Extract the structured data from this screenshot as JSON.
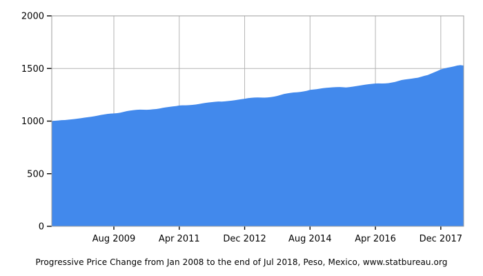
{
  "caption": "Progressive Price Change from Jan 2008 to the end of Jul 2018, Peso, Mexico, www.statbureau.org",
  "chart_data": {
    "type": "area",
    "title": "",
    "series_name": "Progressive price change index",
    "x_unit": "month",
    "start_month": "Jan 2008",
    "end_month": "Jul 2018",
    "interval": "monthly",
    "ylim": [
      0,
      2000
    ],
    "y_ticks": [
      0,
      500,
      1000,
      1500,
      2000
    ],
    "x_ticks": [
      {
        "label": "Aug 2009",
        "month_index": 19
      },
      {
        "label": "Apr 2011",
        "month_index": 39
      },
      {
        "label": "Dec 2012",
        "month_index": 59
      },
      {
        "label": "Aug 2014",
        "month_index": 79
      },
      {
        "label": "Apr 2016",
        "month_index": 99
      },
      {
        "label": "Dec 2017",
        "month_index": 119
      }
    ],
    "values": [
      1000,
      1003,
      1006,
      1009,
      1010,
      1013,
      1016,
      1020,
      1024,
      1028,
      1033,
      1037,
      1041,
      1046,
      1052,
      1058,
      1063,
      1068,
      1071,
      1073,
      1075,
      1080,
      1088,
      1095,
      1100,
      1104,
      1107,
      1109,
      1108,
      1107,
      1109,
      1112,
      1115,
      1120,
      1126,
      1131,
      1135,
      1139,
      1143,
      1148,
      1150,
      1150,
      1152,
      1154,
      1157,
      1162,
      1168,
      1173,
      1177,
      1180,
      1184,
      1186,
      1185,
      1188,
      1191,
      1194,
      1198,
      1203,
      1208,
      1212,
      1218,
      1221,
      1224,
      1225,
      1224,
      1223,
      1225,
      1228,
      1233,
      1239,
      1248,
      1257,
      1263,
      1268,
      1272,
      1274,
      1277,
      1282,
      1288,
      1297,
      1300,
      1303,
      1308,
      1313,
      1316,
      1319,
      1321,
      1323,
      1324,
      1322,
      1320,
      1323,
      1327,
      1332,
      1337,
      1342,
      1347,
      1351,
      1354,
      1357,
      1358,
      1357,
      1358,
      1361,
      1366,
      1372,
      1381,
      1390,
      1395,
      1399,
      1403,
      1408,
      1412,
      1421,
      1430,
      1438,
      1451,
      1464,
      1477,
      1491,
      1500,
      1507,
      1513,
      1520,
      1528,
      1532,
      1528
    ],
    "colors": {
      "area_fill": "#4289EC",
      "gridline": "#b4b4b4",
      "plot_border": "#9e9e9e",
      "tick_mark": "#000000",
      "label_text": "#000000",
      "background": "#ffffff"
    },
    "grid": true,
    "legend": false
  }
}
